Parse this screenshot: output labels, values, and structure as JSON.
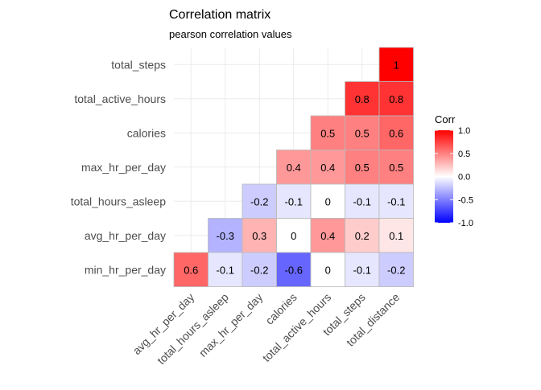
{
  "chart_data": {
    "type": "heatmap",
    "title": "Correlation matrix",
    "subtitle": "pearson correlation values",
    "y_categories": [
      "total_steps",
      "total_active_hours",
      "calories",
      "max_hr_per_day",
      "total_hours_asleep",
      "avg_hr_per_day",
      "min_hr_per_day"
    ],
    "x_categories": [
      "avg_hr_per_day",
      "total_hours_asleep",
      "max_hr_per_day",
      "calories",
      "total_active_hours",
      "total_steps",
      "total_distance"
    ],
    "values": [
      [
        null,
        null,
        null,
        null,
        null,
        null,
        1
      ],
      [
        null,
        null,
        null,
        null,
        null,
        0.8,
        0.8
      ],
      [
        null,
        null,
        null,
        null,
        0.5,
        0.5,
        0.6
      ],
      [
        null,
        null,
        null,
        0.4,
        0.4,
        0.5,
        0.5
      ],
      [
        null,
        null,
        -0.2,
        -0.1,
        0,
        -0.1,
        -0.1
      ],
      [
        null,
        -0.3,
        0.3,
        0,
        0.4,
        0.2,
        0.1
      ],
      [
        0.6,
        -0.1,
        -0.2,
        -0.6,
        0,
        -0.1,
        -0.2
      ]
    ],
    "legend": {
      "title": "Corr",
      "ticks": [
        "1.0",
        "0.5",
        "0.0",
        "-0.5",
        "-1.0"
      ],
      "range": [
        -1,
        1
      ],
      "low_color": "#0000ff",
      "mid_color": "#ffffff",
      "high_color": "#ff0000",
      "position": "right"
    },
    "grid": true
  }
}
